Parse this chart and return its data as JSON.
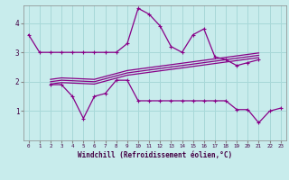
{
  "xlabel": "Windchill (Refroidissement éolien,°C)",
  "bg_color": "#c8ecec",
  "grid_color": "#a8d8d8",
  "line_color": "#880088",
  "xlim": [
    -0.5,
    23.5
  ],
  "ylim": [
    0,
    4.6
  ],
  "yticks": [
    1,
    2,
    3,
    4
  ],
  "xticks": [
    0,
    1,
    2,
    3,
    4,
    5,
    6,
    7,
    8,
    9,
    10,
    11,
    12,
    13,
    14,
    15,
    16,
    17,
    18,
    19,
    20,
    21,
    22,
    23
  ],
  "s1x": [
    0,
    1,
    2,
    3,
    4,
    5,
    6,
    7,
    8,
    9,
    10,
    11,
    12,
    13,
    14,
    15,
    16,
    17,
    18,
    19,
    20,
    21
  ],
  "s1y": [
    3.6,
    3.0,
    3.0,
    3.0,
    3.0,
    3.0,
    3.0,
    3.0,
    3.0,
    3.3,
    4.5,
    4.3,
    3.9,
    3.2,
    3.0,
    3.6,
    3.8,
    2.85,
    2.75,
    2.55,
    2.65,
    2.75
  ],
  "s2x": [
    2,
    3,
    4,
    5,
    6,
    7,
    8,
    9,
    10,
    11,
    12,
    13,
    14,
    15,
    16,
    17,
    18,
    19,
    20,
    21,
    22,
    23
  ],
  "s2y": [
    1.9,
    1.9,
    1.5,
    0.75,
    1.5,
    1.6,
    2.05,
    2.05,
    1.35,
    1.35,
    1.35,
    1.35,
    1.35,
    1.35,
    1.35,
    1.35,
    1.35,
    1.05,
    1.05,
    0.6,
    1.0,
    1.1
  ],
  "s3x": [
    2,
    3,
    6,
    7,
    8,
    9,
    10,
    11,
    12,
    13,
    14,
    15,
    16,
    17,
    18,
    19,
    20,
    21
  ],
  "s3y": [
    2.0,
    2.05,
    2.0,
    2.1,
    2.2,
    2.3,
    2.35,
    2.4,
    2.45,
    2.5,
    2.55,
    2.6,
    2.65,
    2.7,
    2.75,
    2.8,
    2.85,
    2.9
  ],
  "s4x": [
    2,
    3,
    6,
    7,
    8,
    9,
    10,
    11,
    12,
    13,
    14,
    15,
    16,
    17,
    18,
    19,
    20,
    21
  ],
  "s4y": [
    2.08,
    2.13,
    2.08,
    2.18,
    2.28,
    2.38,
    2.43,
    2.48,
    2.53,
    2.58,
    2.63,
    2.68,
    2.73,
    2.78,
    2.83,
    2.88,
    2.93,
    2.98
  ],
  "s5x": [
    2,
    3,
    6,
    7,
    8,
    9,
    10,
    11,
    12,
    13,
    14,
    15,
    16,
    17,
    18,
    19,
    20,
    21
  ],
  "s5y": [
    1.92,
    1.97,
    1.92,
    2.02,
    2.12,
    2.22,
    2.27,
    2.32,
    2.37,
    2.42,
    2.47,
    2.52,
    2.57,
    2.62,
    2.67,
    2.72,
    2.77,
    2.82
  ]
}
